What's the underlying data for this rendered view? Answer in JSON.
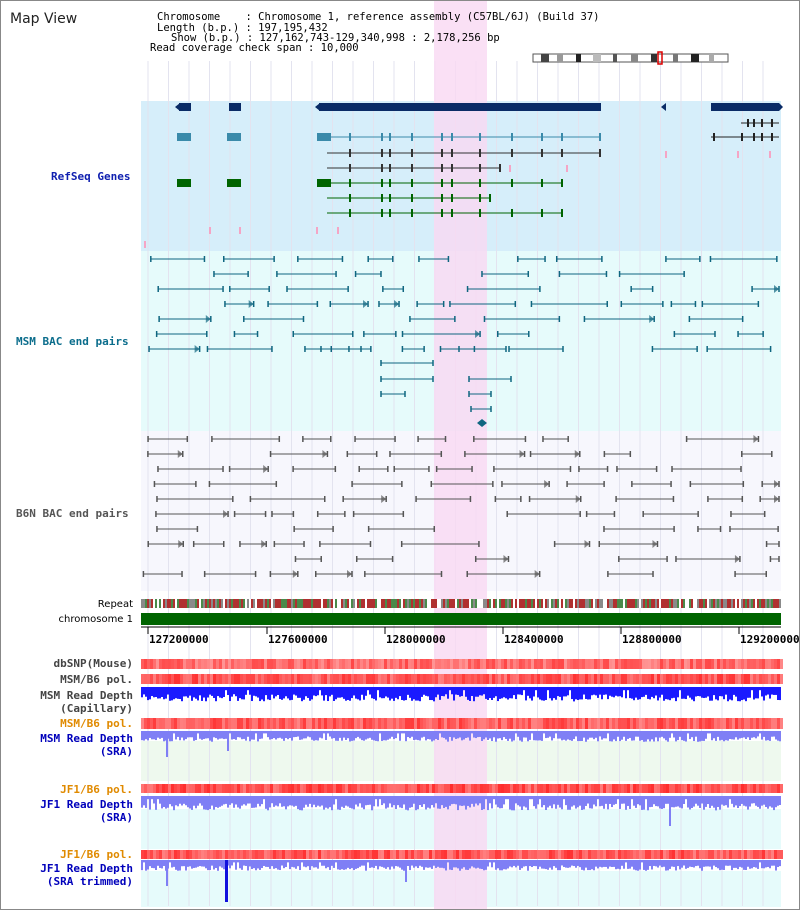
{
  "header": {
    "title": "Map View",
    "chromosome_line": "Chromosome    : Chromosome 1, reference assembly (C57BL/6J) (Build 37)",
    "length_line": "Length (b.p.) : 197,195,432",
    "show_line": "Show (b.p.) : 127,162,743-129,340,998 : 2,178,256 bp",
    "coverage_line": "Read coverage check span : 10,000"
  },
  "tracks": {
    "refseq": "RefSeq Genes",
    "msm_bac": "MSM BAC end pairs",
    "b6n_bac": "B6N BAC end pairs",
    "repeat": "Repeat",
    "chromosome": "chromosome 1",
    "dbsnp": "dbSNP(Mouse)",
    "msm_b6_pol_1": "MSM/B6 pol.",
    "msm_read_depth_cap_1": "MSM Read Depth",
    "msm_read_depth_cap_2": "(Capillary)",
    "msm_b6_pol_2": "MSM/B6 pol.",
    "msm_read_depth_sra_1": "MSM Read Depth",
    "msm_read_depth_sra_2": "(SRA)",
    "jf1_b6_pol_1": "JF1/B6 pol.",
    "jf1_read_depth_sra_1": "JF1 Read Depth",
    "jf1_read_depth_sra_2": "(SRA)",
    "jf1_b6_pol_2": "JF1/B6 pol.",
    "jf1_read_depth_trim_1": "JF1 Read Depth",
    "jf1_read_depth_trim_2": "(SRA trimmed)"
  },
  "axis": {
    "ticks": [
      "127200000",
      "127600000",
      "128000000",
      "128400000",
      "128800000",
      "129200000"
    ]
  },
  "colors": {
    "gene_navy": "#0a2b66",
    "gene_teal": "#3a8aaa",
    "gene_green": "#006400",
    "bac_msm": "#0f6680",
    "bac_b6n": "#555555",
    "highlight": "#f9d8f2",
    "refseq_bg": "#d6eefa",
    "msm_bg": "#e6fbfb",
    "b6n_bg": "#f7f7fd",
    "label_blue": "#0000bb",
    "label_teal": "#0b6d8c",
    "label_orange": "#e08a00",
    "depth_blue": "#1010ff",
    "depth_light": "#7f7ff5"
  }
}
